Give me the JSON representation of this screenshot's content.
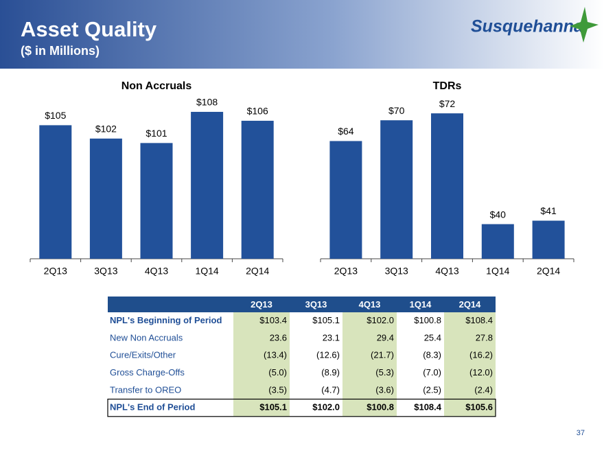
{
  "header": {
    "title": "Asset Quality",
    "subtitle": "($ in Millions)",
    "logo": "Susquehanna"
  },
  "chart_data": [
    {
      "type": "bar",
      "title": "Non Accruals",
      "categories": [
        "2Q13",
        "3Q13",
        "4Q13",
        "1Q14",
        "2Q14"
      ],
      "values": [
        105,
        102,
        101,
        108,
        106
      ],
      "value_labels": [
        "$105",
        "$102",
        "$101",
        "$108",
        "$106"
      ],
      "color": "#22519a",
      "ylim": [
        75,
        110
      ]
    },
    {
      "type": "bar",
      "title": "TDRs",
      "categories": [
        "2Q13",
        "3Q13",
        "4Q13",
        "1Q14",
        "2Q14"
      ],
      "values": [
        64,
        70,
        72,
        40,
        41
      ],
      "value_labels": [
        "$64",
        "$70",
        "$72",
        "$40",
        "$41"
      ],
      "color": "#22519a",
      "ylim": [
        30,
        75
      ]
    }
  ],
  "table": {
    "columns": [
      "2Q13",
      "3Q13",
      "4Q13",
      "1Q14",
      "2Q14"
    ],
    "rows": [
      [
        "NPL's Beginning of Period",
        "$103.4",
        "$105.1",
        "$102.0",
        "$100.8",
        "$108.4"
      ],
      [
        "New Non Accruals",
        "23.6",
        "23.1",
        "29.4",
        "25.4",
        "27.8"
      ],
      [
        "Cure/Exits/Other",
        "(13.4)",
        "(12.6)",
        "(21.7)",
        "(8.3)",
        "(16.2)"
      ],
      [
        "Gross Charge-Offs",
        "(5.0)",
        "(8.9)",
        "(5.3)",
        "(7.0)",
        "(12.0)"
      ],
      [
        "Transfer to OREO",
        "(3.5)",
        "(4.7)",
        "(3.6)",
        "(2.5)",
        "(2.4)"
      ],
      [
        "NPL's End of Period",
        "$105.1",
        "$102.0",
        "$100.8",
        "$108.4",
        "$105.6"
      ]
    ]
  },
  "page_number": "37"
}
